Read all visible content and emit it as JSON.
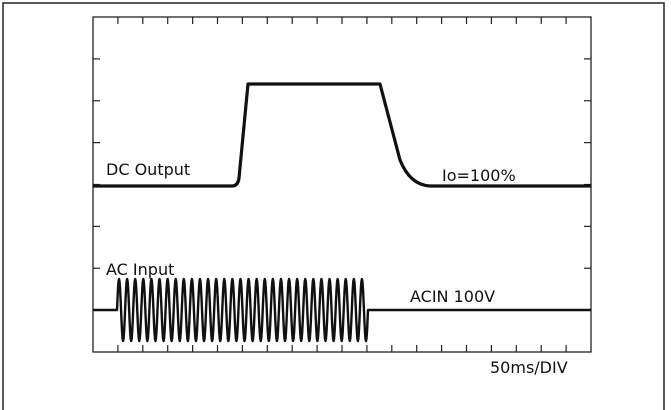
{
  "labels": {
    "dc_output": "DC Output",
    "ac_input": "AC Input",
    "io_load": "Io=100%",
    "acin_voltage": "ACIN 100V",
    "timebase": "50ms/DIV"
  },
  "colors": {
    "trace": "#111111",
    "frame": "#222222",
    "background": "#ffffff"
  }
}
